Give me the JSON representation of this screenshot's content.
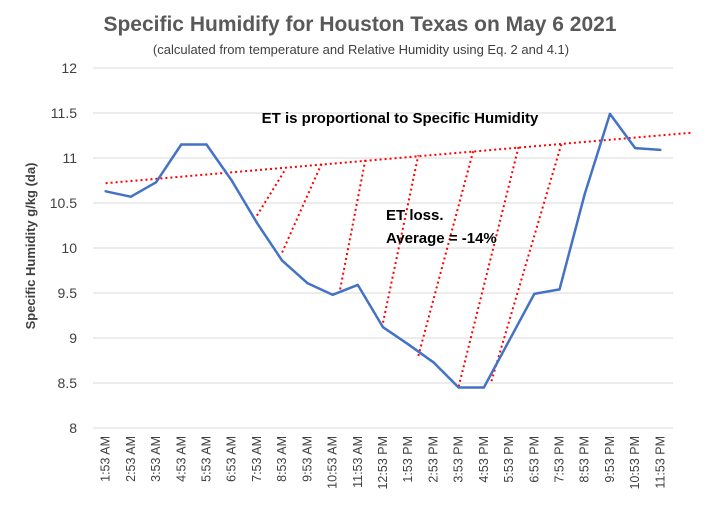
{
  "chart_data": {
    "type": "line",
    "title": "Specific Humidify for Houston Texas on May 6 2021",
    "subtitle": "(calculated from temperature and Relative Humidity using Eq. 2 and 4.1)",
    "ylabel": "Specific Humidity g/kg (da)",
    "xlabel": "",
    "ylim": [
      8,
      12
    ],
    "yticks": [
      "8",
      "8.5",
      "9",
      "9.5",
      "10",
      "10.5",
      "11",
      "11.5",
      "12"
    ],
    "categories": [
      "1:53 AM",
      "2:53 AM",
      "3:53 AM",
      "4:53 AM",
      "5:53 AM",
      "6:53 AM",
      "7:53 AM",
      "8:53 AM",
      "9:53 AM",
      "10:53 AM",
      "11:53 AM",
      "12:53 PM",
      "1:53 PM",
      "2:53 PM",
      "3:53 PM",
      "4:53 PM",
      "5:53 PM",
      "6:53 PM",
      "7:53 PM",
      "8:53 PM",
      "9:53 PM",
      "10:53 PM",
      "11:53 PM"
    ],
    "series": [
      {
        "name": "Specific Humidity",
        "color": "#4472C4",
        "values": [
          10.63,
          10.57,
          10.73,
          11.15,
          11.15,
          10.75,
          10.28,
          9.86,
          9.61,
          9.48,
          9.59,
          9.12,
          8.93,
          8.73,
          8.45,
          8.45,
          8.97,
          9.49,
          9.54,
          10.6,
          11.49,
          11.11,
          11.09
        ]
      }
    ],
    "trendline": {
      "label": "ET is proportional to Specific Humidity",
      "color": "#FF0000",
      "x_start": 0,
      "y_start": 10.72,
      "x_end": 23.2,
      "y_end": 11.28
    },
    "et_loss_lines": [
      {
        "from_x": 6,
        "from_y": 10.36,
        "to_x": 7.1,
        "to_y": 10.86
      },
      {
        "from_x": 7,
        "from_y": 9.95,
        "to_x": 8.6,
        "to_y": 10.96
      },
      {
        "from_x": 9.3,
        "from_y": 9.54,
        "to_x": 10.3,
        "to_y": 10.98
      },
      {
        "from_x": 11,
        "from_y": 9.17,
        "to_x": 12.4,
        "to_y": 11.03
      },
      {
        "from_x": 12.4,
        "from_y": 8.8,
        "to_x": 14.6,
        "to_y": 11.1
      },
      {
        "from_x": 14,
        "from_y": 8.46,
        "to_x": 16.4,
        "to_y": 11.15
      },
      {
        "from_x": 15.3,
        "from_y": 8.52,
        "to_x": 18.1,
        "to_y": 11.18
      }
    ],
    "annotations": [
      {
        "text": "ET is proportional to Specific Humidity"
      },
      {
        "text": "ET loss."
      },
      {
        "text": "Average = -14%"
      }
    ],
    "grid": true
  }
}
